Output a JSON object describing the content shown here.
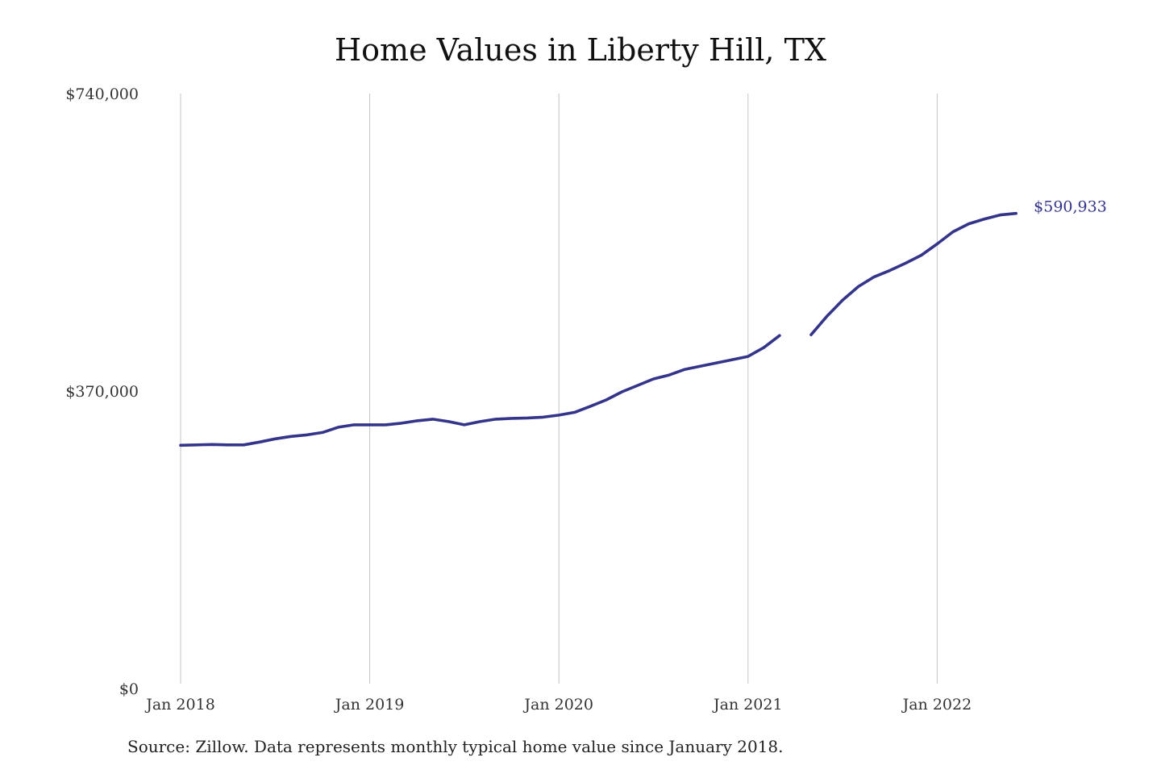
{
  "chart_data": {
    "type": "line",
    "title": "Home Values in Liberty Hill, TX",
    "note": "Source: Zillow. Data represents monthly typical home value since January 2018.",
    "xlabel": "",
    "ylabel": "",
    "xlim": [
      "2018-01",
      "2022-12"
    ],
    "ylim": [
      0,
      740000
    ],
    "x_ticks": [
      "Jan 2018",
      "Jan 2019",
      "Jan 2020",
      "Jan 2021",
      "Jan 2022"
    ],
    "y_ticks": [
      "$740,000",
      "$370,000",
      "$0"
    ],
    "grid": "vertical",
    "legend": "none",
    "line_color": "#34348a",
    "end_label": "$590,933",
    "series": [
      {
        "segments": [
          {
            "x": [
              "2018-01",
              "2018-02",
              "2018-03",
              "2018-04",
              "2018-05",
              "2018-06",
              "2018-07",
              "2018-08",
              "2018-09",
              "2018-10",
              "2018-11",
              "2018-12",
              "2019-01",
              "2019-02",
              "2019-03",
              "2019-04",
              "2019-05",
              "2019-06",
              "2019-07",
              "2019-08",
              "2019-09",
              "2019-10",
              "2019-11",
              "2019-12",
              "2020-01",
              "2020-02",
              "2020-03",
              "2020-04",
              "2020-05",
              "2020-06",
              "2020-07",
              "2020-08",
              "2020-09",
              "2020-10",
              "2020-11",
              "2020-12",
              "2021-01",
              "2021-02",
              "2021-03"
            ],
            "values": [
              302500,
              303000,
              303500,
              303000,
              303000,
              306500,
              310500,
              313500,
              315500,
              318500,
              325000,
              328000,
              328000,
              328000,
              330000,
              333000,
              335000,
              332000,
              328000,
              332000,
              335000,
              336000,
              336500,
              337500,
              340000,
              343500,
              351000,
              359000,
              369000,
              377000,
              385000,
              390000,
              397000,
              401000,
              405000,
              409000,
              413000,
              424000,
              439000
            ]
          },
          {
            "x": [
              "2021-05",
              "2021-06",
              "2021-07",
              "2021-08",
              "2021-09",
              "2021-10",
              "2021-11",
              "2021-12",
              "2022-01",
              "2022-02",
              "2022-03",
              "2022-04",
              "2022-05",
              "2022-06"
            ],
            "values": [
              440000,
              463000,
              483000,
              500000,
              512000,
              520000,
              529000,
              539000,
              553000,
              568000,
              578000,
              584000,
              589000,
              590933
            ]
          }
        ]
      }
    ]
  }
}
